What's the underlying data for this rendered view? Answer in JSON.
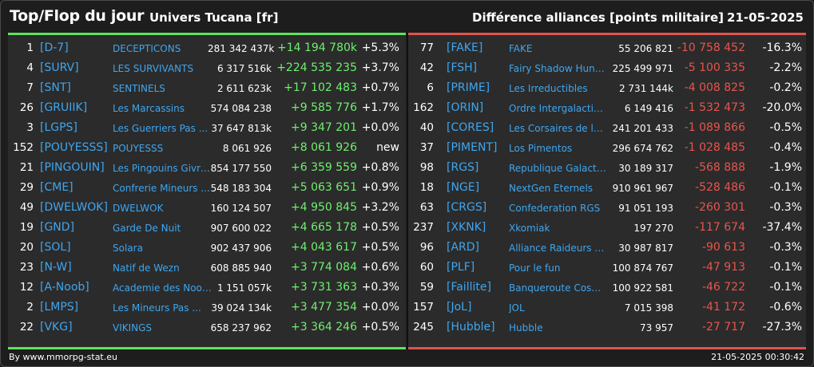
{
  "header": {
    "title": "Top/Flop du jour",
    "universe": "Univers Tucana [fr]",
    "subtitle": "Différence alliances [points militaire]",
    "date": "21-05-2025"
  },
  "colors": {
    "positive": "#6ef06e",
    "negative": "#e8544c",
    "tag": "#3ea6f0",
    "top_accent": "#5ee35e",
    "flop_accent": "#e0534c"
  },
  "top": [
    {
      "rank": "1",
      "tag": "[D-7]",
      "name": "DECEPTICONS",
      "points": "281 342 437k",
      "diff": "+14 194 780k",
      "pct": "+5.3%"
    },
    {
      "rank": "4",
      "tag": "[SURV]",
      "name": "LES SURVIVANTS",
      "points": "6 317 516k",
      "diff": "+224 535 235",
      "pct": "+3.7%"
    },
    {
      "rank": "7",
      "tag": "[SNT]",
      "name": "SENTINELS",
      "points": "2 611 623k",
      "diff": "+17 102 483",
      "pct": "+0.7%"
    },
    {
      "rank": "26",
      "tag": "[GRUIIK]",
      "name": "Les Marcassins",
      "points": "574 084 238",
      "diff": "+9 585 776",
      "pct": "+1.7%"
    },
    {
      "rank": "3",
      "tag": "[LGPS]",
      "name": "Les Guerriers Pas ...",
      "points": "37 647 813k",
      "diff": "+9 347 201",
      "pct": "+0.0%"
    },
    {
      "rank": "152",
      "tag": "[POUYESSS]",
      "name": "POUYESSS",
      "points": "8 061 926",
      "diff": "+8 061 926",
      "pct": "new"
    },
    {
      "rank": "21",
      "tag": "[PINGOUIN]",
      "name": "Les Pingouins Givre...",
      "points": "854 177 550",
      "diff": "+6 359 559",
      "pct": "+0.8%"
    },
    {
      "rank": "29",
      "tag": "[CME]",
      "name": "Confrerie Mineurs ...",
      "points": "548 183 304",
      "diff": "+5 063 651",
      "pct": "+0.9%"
    },
    {
      "rank": "49",
      "tag": "[DWELWOK]",
      "name": "DWELWOK",
      "points": "160 124 507",
      "diff": "+4 950 845",
      "pct": "+3.2%"
    },
    {
      "rank": "19",
      "tag": "[GND]",
      "name": "Garde De Nuit",
      "points": "907 600 022",
      "diff": "+4 665 178",
      "pct": "+0.5%"
    },
    {
      "rank": "20",
      "tag": "[SOL]",
      "name": "Solara",
      "points": "902 437 906",
      "diff": "+4 043 617",
      "pct": "+0.5%"
    },
    {
      "rank": "23",
      "tag": "[N-W]",
      "name": "Natif de Wezn",
      "points": "608 885 940",
      "diff": "+3 774 084",
      "pct": "+0.6%"
    },
    {
      "rank": "12",
      "tag": "[A-Noob]",
      "name": "Academie des Noob...",
      "points": "1 151 057k",
      "diff": "+3 731 363",
      "pct": "+0.3%"
    },
    {
      "rank": "2",
      "tag": "[LMPS]",
      "name": "Les Mineurs Pas ...",
      "points": "39 024 134k",
      "diff": "+3 477 354",
      "pct": "+0.0%"
    },
    {
      "rank": "22",
      "tag": "[VKG]",
      "name": "VIKINGS",
      "points": "658 237 962",
      "diff": "+3 364 246",
      "pct": "+0.5%"
    }
  ],
  "flop": [
    {
      "rank": "77",
      "tag": "[FAKE]",
      "name": "FAKE",
      "points": "55 206 821",
      "diff": "-10 758 452",
      "pct": "-16.3%"
    },
    {
      "rank": "42",
      "tag": "[FSH]",
      "name": "Fairy Shadow Hunter",
      "points": "225 499 971",
      "diff": "-5 100 335",
      "pct": "-2.2%"
    },
    {
      "rank": "6",
      "tag": "[PRIME]",
      "name": "Les Irreductibles",
      "points": "2 731 144k",
      "diff": "-4 008 825",
      "pct": "-0.2%"
    },
    {
      "rank": "162",
      "tag": "[ORIN]",
      "name": "Ordre Intergalactique",
      "points": "6 149 416",
      "diff": "-1 532 473",
      "pct": "-20.0%"
    },
    {
      "rank": "40",
      "tag": "[CORES]",
      "name": "Les Corsaires de l_...",
      "points": "241 201 433",
      "diff": "-1 089 866",
      "pct": "-0.5%"
    },
    {
      "rank": "37",
      "tag": "[PIMENT]",
      "name": "Los Pimentos",
      "points": "296 674 762",
      "diff": "-1 028 485",
      "pct": "-0.4%"
    },
    {
      "rank": "98",
      "tag": "[RGS]",
      "name": "Republique Galacti...",
      "points": "30 189 317",
      "diff": "-568 888",
      "pct": "-1.9%"
    },
    {
      "rank": "18",
      "tag": "[NGE]",
      "name": "NextGen Eternels",
      "points": "910 961 967",
      "diff": "-528 486",
      "pct": "-0.1%"
    },
    {
      "rank": "63",
      "tag": "[CRGS]",
      "name": "Confederation RGS",
      "points": "91 051 193",
      "diff": "-260 301",
      "pct": "-0.3%"
    },
    {
      "rank": "237",
      "tag": "[XKNK]",
      "name": "Xkomiak",
      "points": "197 270",
      "diff": "-117 674",
      "pct": "-37.4%"
    },
    {
      "rank": "96",
      "tag": "[ARD]",
      "name": "Alliance Raideurs et...",
      "points": "30 987 817",
      "diff": "-90 613",
      "pct": "-0.3%"
    },
    {
      "rank": "60",
      "tag": "[PLF]",
      "name": "Pour le fun",
      "points": "100 874 767",
      "diff": "-47 913",
      "pct": "-0.1%"
    },
    {
      "rank": "59",
      "tag": "[Faillite]",
      "name": "Banqueroute Cosm...",
      "points": "100 922 581",
      "diff": "-46 722",
      "pct": "-0.1%"
    },
    {
      "rank": "157",
      "tag": "[JoL]",
      "name": "JOL",
      "points": "7 015 398",
      "diff": "-41 172",
      "pct": "-0.6%"
    },
    {
      "rank": "245",
      "tag": "[Hubble]",
      "name": "Hubble",
      "points": "73 957",
      "diff": "-27 717",
      "pct": "-27.3%"
    }
  ],
  "footer": {
    "source": "By www.mmorpg-stat.eu",
    "timestamp": "21-05-2025 00:30:42"
  }
}
